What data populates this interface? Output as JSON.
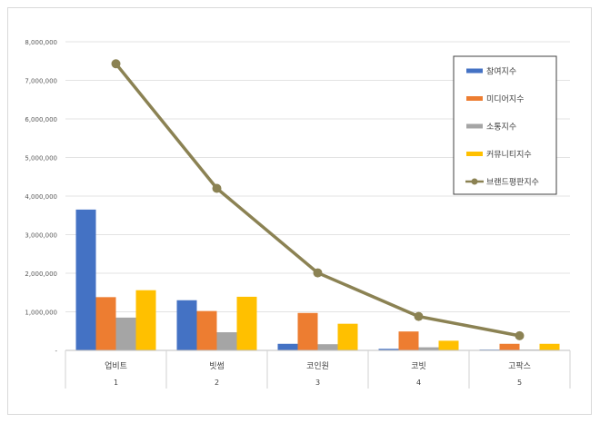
{
  "chart_data": {
    "type": "bar",
    "categories": [
      "업비트",
      "빗썸",
      "코인원",
      "코빗",
      "고팍스"
    ],
    "category_index": [
      "1",
      "2",
      "3",
      "4",
      "5"
    ],
    "y_tick_labels": [
      "-",
      "1,000,000",
      "2,000,000",
      "3,000,000",
      "4,000,000",
      "5,000,000",
      "6,000,000",
      "7,000,000",
      "8,000,000"
    ],
    "ylim": [
      0,
      8000000
    ],
    "grid": true,
    "legend_position": "top-right",
    "title": "",
    "xlabel": "",
    "ylabel": "",
    "series": [
      {
        "name": "참여지수",
        "type": "bar",
        "color": "#4472C4",
        "values": [
          3650000,
          1300000,
          170000,
          40000,
          20000
        ]
      },
      {
        "name": "미디어지수",
        "type": "bar",
        "color": "#ED7D31",
        "values": [
          1380000,
          1020000,
          970000,
          490000,
          170000
        ]
      },
      {
        "name": "소통지수",
        "type": "bar",
        "color": "#A5A5A5",
        "values": [
          850000,
          470000,
          160000,
          80000,
          20000
        ]
      },
      {
        "name": "커뮤니티지수",
        "type": "bar",
        "color": "#FFC000",
        "values": [
          1560000,
          1390000,
          690000,
          250000,
          170000
        ]
      },
      {
        "name": "브랜드평판지수",
        "type": "line",
        "color": "#8B8253",
        "values": [
          7430000,
          4200000,
          2010000,
          880000,
          380000
        ]
      }
    ]
  }
}
